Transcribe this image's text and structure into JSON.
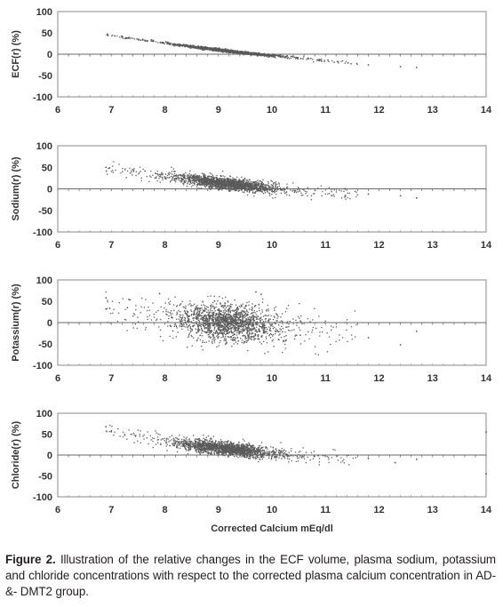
{
  "caption": {
    "label": "Figure 2.",
    "text": "Illustration of the relative changes in the ECF volume, plasma sodium, potassium and chloride concentrations with respect to the corrected plasma calcium concentration in AD-&- DMT2 group."
  },
  "chart_data": [
    {
      "type": "scatter",
      "title": "",
      "xlabel": "",
      "ylabel": "ECF(r) (%)",
      "xlim": [
        6,
        14
      ],
      "ylim": [
        -100,
        100
      ],
      "xticks": [
        6,
        7,
        8,
        9,
        10,
        11,
        12,
        13,
        14
      ],
      "yticks": [
        -100,
        -50,
        0,
        50,
        100
      ],
      "grid": false,
      "trend": {
        "x": [
          6.9,
          7.5,
          8.0,
          8.5,
          9.0,
          9.5,
          10.0,
          10.5,
          11.0,
          11.5,
          12.0,
          12.5
        ],
        "y": [
          46,
          35,
          26,
          18,
          10,
          3,
          -3,
          -9,
          -15,
          -21,
          -26,
          -31
        ]
      },
      "spread": 1.5,
      "outliers": {
        "x": [
          11.8,
          12.4,
          12.7
        ],
        "y": [
          -25,
          -29,
          -31
        ]
      }
    },
    {
      "type": "scatter",
      "title": "",
      "xlabel": "",
      "ylabel": "Sodium(r) (%)",
      "xlim": [
        6,
        14
      ],
      "ylim": [
        -100,
        100
      ],
      "xticks": [
        6,
        7,
        8,
        9,
        10,
        11,
        12,
        13,
        14
      ],
      "yticks": [
        -100,
        -50,
        0,
        50,
        100
      ],
      "grid": false,
      "trend": {
        "x": [
          6.9,
          7.5,
          8.0,
          8.5,
          9.0,
          9.5,
          10.0,
          10.5,
          11.0,
          11.5,
          12.0,
          12.5
        ],
        "y": [
          48,
          38,
          30,
          22,
          14,
          7,
          1,
          -4,
          -9,
          -13,
          -17,
          -20
        ]
      },
      "spread": 7,
      "outliers": {
        "x": [
          6.9,
          7.4,
          11.8,
          12.4,
          12.7
        ],
        "y": [
          50,
          45,
          -12,
          -16,
          -21
        ]
      }
    },
    {
      "type": "scatter",
      "title": "",
      "xlabel": "",
      "ylabel": "Potassium(r) (%)",
      "xlim": [
        6,
        14
      ],
      "ylim": [
        -100,
        100
      ],
      "xticks": [
        6,
        7,
        8,
        9,
        10,
        11,
        12,
        13,
        14
      ],
      "yticks": [
        -100,
        -50,
        0,
        50,
        100
      ],
      "grid": false,
      "trend": {
        "x": [
          6.9,
          7.5,
          8.0,
          8.5,
          9.0,
          9.5,
          10.0,
          10.5,
          11.0,
          11.5,
          12.0,
          12.5
        ],
        "y": [
          30,
          20,
          12,
          6,
          2,
          -3,
          -6,
          -10,
          -14,
          -18,
          -22,
          -26
        ]
      },
      "spread": 22,
      "outliers": {
        "x": [
          6.9,
          6.9,
          7.3,
          7.9,
          9.7,
          9.8,
          11.8,
          12.4,
          12.7
        ],
        "y": [
          58,
          32,
          35,
          68,
          72,
          66,
          -35,
          -52,
          -20
        ]
      }
    },
    {
      "type": "scatter",
      "title": "",
      "xlabel": "Corrected Calcium mEq/dl",
      "ylabel": "Chloride(r) (%)",
      "xlim": [
        6,
        14
      ],
      "ylim": [
        -100,
        100
      ],
      "xticks": [
        6,
        7,
        8,
        9,
        10,
        11,
        12,
        13,
        14
      ],
      "yticks": [
        -100,
        -50,
        0,
        50,
        100
      ],
      "grid": false,
      "trend": {
        "x": [
          6.9,
          7.5,
          8.0,
          8.5,
          9.0,
          9.5,
          10.0,
          10.5,
          11.0,
          11.5,
          12.0,
          12.5
        ],
        "y": [
          62,
          45,
          33,
          24,
          17,
          10,
          4,
          -1,
          -5,
          -9,
          -13,
          -16
        ]
      },
      "spread": 8,
      "outliers": {
        "x": [
          6.9,
          7.0,
          11.8,
          12.3,
          12.7,
          14.0,
          14.0
        ],
        "y": [
          68,
          58,
          -8,
          -18,
          -10,
          55,
          -45
        ]
      }
    }
  ]
}
